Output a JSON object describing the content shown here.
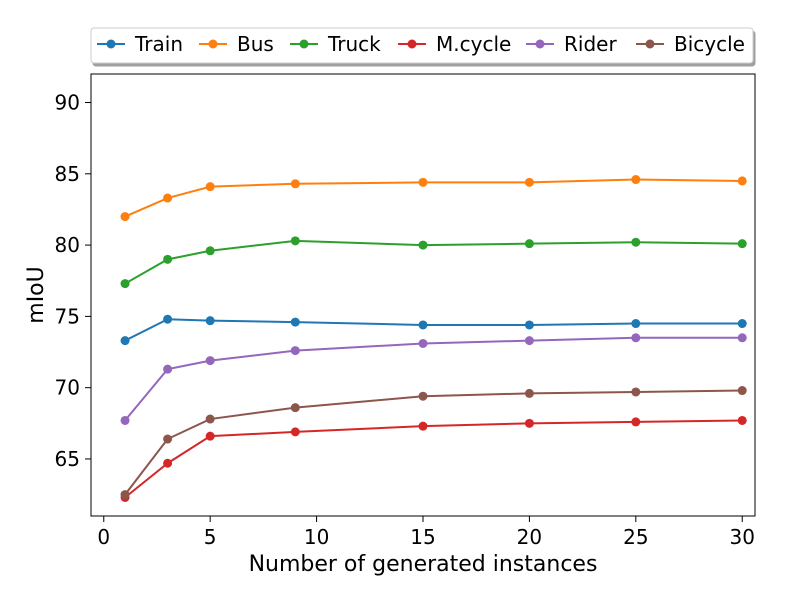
{
  "chart_data": {
    "type": "line",
    "title": "",
    "xlabel": "Number of generated instances",
    "ylabel": "mIoU",
    "x": [
      1,
      3,
      5,
      9,
      15,
      20,
      25,
      30
    ],
    "xlim": [
      -0.6,
      30.6
    ],
    "ylim": [
      61.0,
      92.0
    ],
    "xticks": [
      0,
      5,
      10,
      15,
      20,
      25,
      30
    ],
    "yticks": [
      65,
      70,
      75,
      80,
      85,
      90
    ],
    "grid": false,
    "legend_position": "top (above plot)",
    "series": [
      {
        "name": "Train",
        "color": "#1f77b4",
        "values": [
          73.3,
          74.8,
          74.7,
          74.6,
          74.4,
          74.4,
          74.5,
          74.5
        ]
      },
      {
        "name": "Bus",
        "color": "#ff7f0e",
        "values": [
          82.0,
          83.3,
          84.1,
          84.3,
          84.4,
          84.4,
          84.6,
          84.5
        ]
      },
      {
        "name": "Truck",
        "color": "#2ca02c",
        "values": [
          77.3,
          79.0,
          79.6,
          80.3,
          80.0,
          80.1,
          80.2,
          80.1
        ]
      },
      {
        "name": "M.cycle",
        "color": "#d62728",
        "values": [
          62.3,
          64.7,
          66.6,
          66.9,
          67.3,
          67.5,
          67.6,
          67.7
        ]
      },
      {
        "name": "Rider",
        "color": "#9467bd",
        "values": [
          67.7,
          71.3,
          71.9,
          72.6,
          73.1,
          73.3,
          73.5,
          73.5
        ]
      },
      {
        "name": "Bicycle",
        "color": "#8c564b",
        "values": [
          62.5,
          66.4,
          67.8,
          68.6,
          69.4,
          69.6,
          69.7,
          69.8
        ]
      }
    ]
  }
}
